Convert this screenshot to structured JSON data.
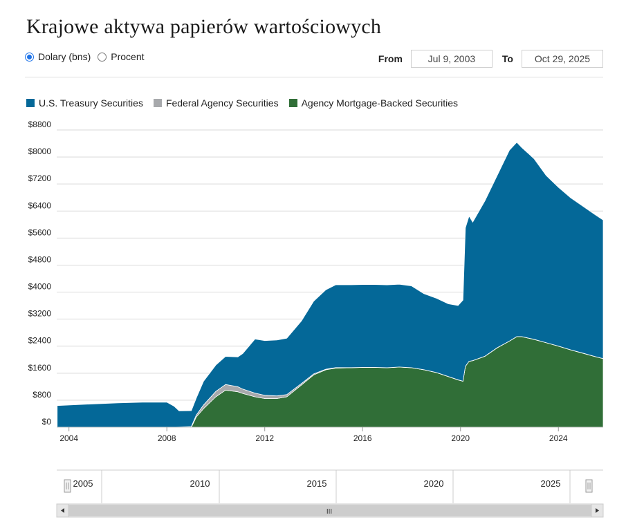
{
  "title": "Krajowe aktywa papierów wartościowych",
  "unit_toggle": {
    "options": [
      {
        "label": "Dolary (bns)",
        "checked": true
      },
      {
        "label": "Procent",
        "checked": false
      }
    ]
  },
  "date_range": {
    "from_label": "From",
    "from_value": "Jul 9, 2003",
    "to_label": "To",
    "to_value": "Oct 29, 2025"
  },
  "navigator": {
    "labels": [
      "2005",
      "2010",
      "2015",
      "2020",
      "2025"
    ],
    "handle_glyph": "III"
  },
  "chart_data": {
    "type": "area",
    "stacked": true,
    "legend_position": "top-left",
    "grid": true,
    "x_range": [
      2003.5,
      2025.83
    ],
    "ylim": [
      0,
      8800
    ],
    "y_ticks": [
      0,
      800,
      1600,
      2400,
      3200,
      4000,
      4800,
      5600,
      6400,
      7200,
      8000,
      8800
    ],
    "y_tick_labels": [
      "$0",
      "$800",
      "$1600",
      "$2400",
      "$3200",
      "$4000",
      "$4800",
      "$5600",
      "$6400",
      "$7200",
      "$8000",
      "$8800"
    ],
    "x_ticks": [
      2004,
      2008,
      2012,
      2016,
      2020,
      2024
    ],
    "x_tick_labels": [
      "2004",
      "2008",
      "2012",
      "2016",
      "2020",
      "2024"
    ],
    "x": [
      2003.52,
      2005,
      2006,
      2007,
      2008,
      2008.3,
      2008.5,
      2009.0,
      2009.2,
      2009.5,
      2010.0,
      2010.4,
      2010.9,
      2011.1,
      2011.6,
      2012.0,
      2012.5,
      2012.9,
      2013.5,
      2014.0,
      2014.5,
      2014.9,
      2015.5,
      2016.0,
      2016.5,
      2017.0,
      2017.5,
      2018.0,
      2018.5,
      2019.0,
      2019.5,
      2019.9,
      2020.1,
      2020.2,
      2020.35,
      2020.5,
      2021.0,
      2021.5,
      2022.0,
      2022.3,
      2022.5,
      2023.0,
      2023.5,
      2024.0,
      2024.5,
      2025.0,
      2025.5,
      2025.83
    ],
    "series": [
      {
        "name": "U.S. Treasury Securities",
        "color": "#046898",
        "values": [
          640,
          690,
          720,
          740,
          740,
          620,
          480,
          470,
          500,
          700,
          780,
          830,
          880,
          1050,
          1600,
          1620,
          1650,
          1670,
          1850,
          2150,
          2350,
          2450,
          2450,
          2450,
          2450,
          2450,
          2450,
          2420,
          2250,
          2200,
          2150,
          2200,
          2400,
          4100,
          4300,
          4100,
          4600,
          5100,
          5650,
          5750,
          5600,
          5350,
          4950,
          4700,
          4500,
          4350,
          4200,
          4100
        ]
      },
      {
        "name": "Federal Agency Securities",
        "color": "#a7a9ac",
        "values": [
          0,
          0,
          0,
          0,
          0,
          0,
          5,
          20,
          60,
          110,
          160,
          165,
          150,
          130,
          110,
          95,
          80,
          65,
          45,
          30,
          20,
          15,
          5,
          3,
          3,
          3,
          3,
          3,
          3,
          3,
          3,
          3,
          3,
          3,
          3,
          3,
          3,
          3,
          3,
          3,
          3,
          3,
          3,
          3,
          3,
          3,
          3,
          3
        ]
      },
      {
        "name": "Agency Mortgage-Backed Securities",
        "color": "#306e37",
        "values": [
          0,
          0,
          0,
          0,
          0,
          0,
          0,
          0,
          300,
          550,
          900,
          1100,
          1050,
          1000,
          900,
          850,
          850,
          900,
          1250,
          1550,
          1700,
          1750,
          1760,
          1770,
          1770,
          1760,
          1780,
          1760,
          1700,
          1620,
          1500,
          1400,
          1360,
          1800,
          1950,
          1970,
          2100,
          2350,
          2550,
          2680,
          2680,
          2600,
          2500,
          2400,
          2290,
          2190,
          2090,
          2030
        ]
      }
    ]
  }
}
